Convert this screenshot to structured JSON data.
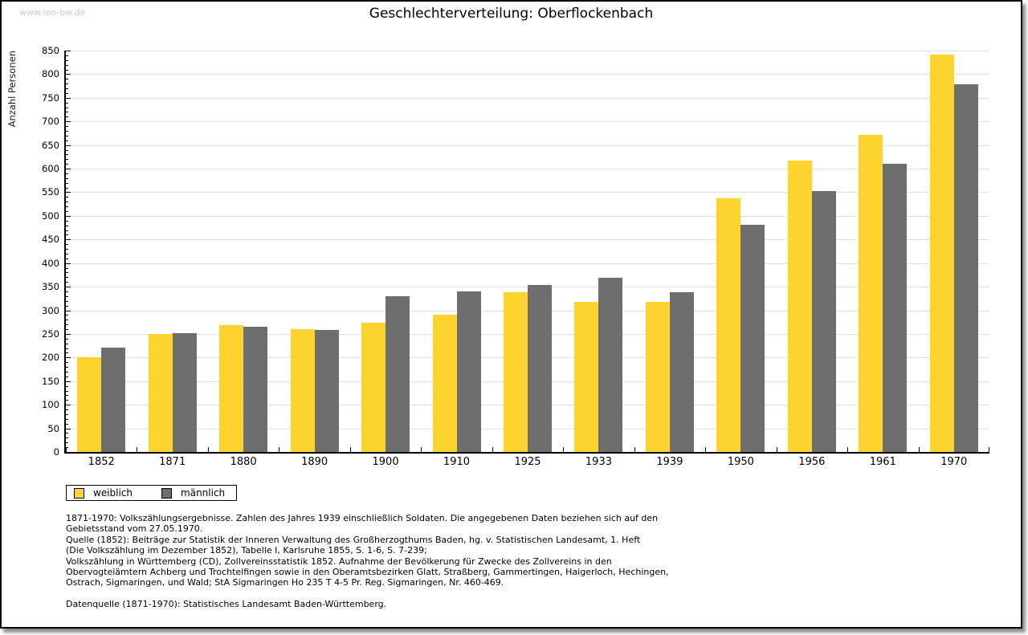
{
  "page": {
    "watermark": "www.leo-bw.de",
    "title": "Geschlechterverteilung: Oberflockenbach"
  },
  "chart_data": {
    "type": "bar",
    "title": "Geschlechterverteilung: Oberflockenbach",
    "ylabel": "Anzahl Personen",
    "xlabel": "",
    "ylim": [
      0,
      850
    ],
    "yticks": [
      0,
      50,
      100,
      150,
      200,
      250,
      300,
      350,
      400,
      450,
      500,
      550,
      600,
      650,
      700,
      750,
      800,
      850
    ],
    "ytick_step": 50,
    "minor_tick_step": 10,
    "grid": true,
    "legend_position": "below-chart-left",
    "categories": [
      "1852",
      "1871",
      "1880",
      "1890",
      "1900",
      "1910",
      "1925",
      "1933",
      "1939",
      "1950",
      "1956",
      "1961",
      "1970"
    ],
    "series": [
      {
        "name": "weiblich",
        "color": "#FDD32D",
        "values": [
          201,
          250,
          268,
          260,
          274,
          291,
          338,
          318,
          318,
          537,
          617,
          672,
          842
        ]
      },
      {
        "name": "männlich",
        "color": "#6E6E6E",
        "values": [
          221,
          252,
          265,
          258,
          330,
          340,
          354,
          369,
          338,
          481,
          552,
          611,
          779
        ]
      }
    ]
  },
  "footnotes": {
    "lines": [
      "1871-1970: Volkszählungsergebnisse. Zahlen des Jahres 1939 einschließlich Soldaten. Die angegebenen Daten beziehen sich auf den",
      "Gebietsstand vom 27.05.1970.",
      "Quelle (1852): Beiträge zur Statistik der Inneren Verwaltung des Großherzogthums Baden, hg. v. Statistischen Landesamt, 1. Heft",
      "(Die Volkszählung im Dezember 1852), Tabelle I, Karlsruhe 1855, S. 1-6, S. 7-239;",
      "Volkszählung in Württemberg (CD), Zollvereinsstatistik 1852. Aufnahme der Bevölkerung für Zwecke des Zollvereins in den",
      "Obervogteiämtern Achberg und Trochtelfingen sowie in den Oberamtsbezirken Glatt, Straßberg, Gammertingen, Haigerloch, Hechingen,",
      "Ostrach, Sigmaringen, und Wald; StA Sigmaringen Ho 235 T 4-5 Pr. Reg. Sigmaringen, Nr. 460-469."
    ],
    "datenquelle": "Datenquelle (1871-1970): Statistisches Landesamt Baden-Württemberg."
  }
}
